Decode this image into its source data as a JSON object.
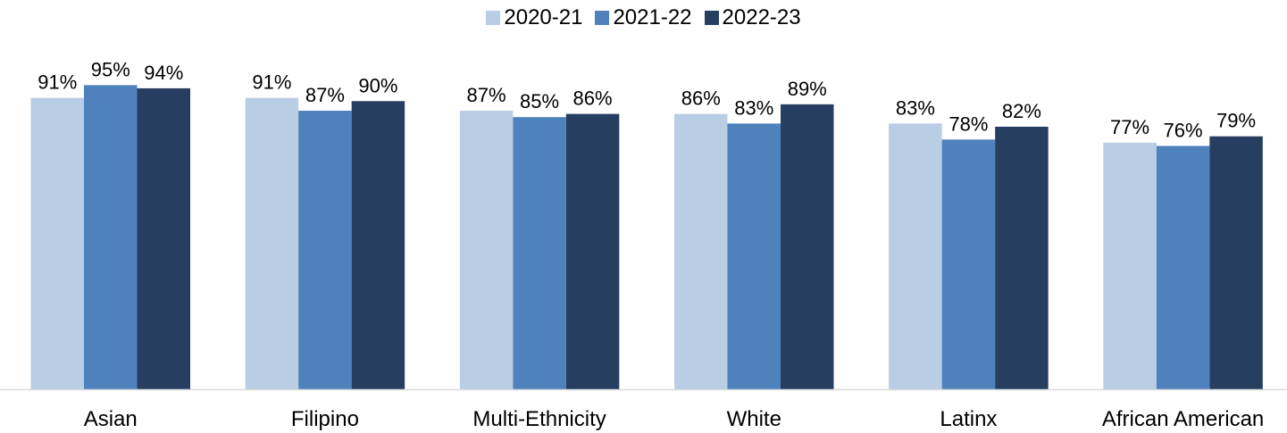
{
  "chart_data": {
    "type": "bar",
    "categories": [
      "Asian",
      "Filipino",
      "Multi-Ethnicity",
      "White",
      "Latinx",
      "African American"
    ],
    "series": [
      {
        "name": "2020-21",
        "color": "#B9CDE5",
        "values": [
          91,
          91,
          87,
          86,
          83,
          77
        ],
        "labels": [
          "91%",
          "91%",
          "87%",
          "86%",
          "83%",
          "77%"
        ]
      },
      {
        "name": "2021-22",
        "color": "#4F81BD",
        "values": [
          95,
          87,
          85,
          83,
          78,
          76
        ],
        "labels": [
          "95%",
          "87%",
          "85%",
          "83%",
          "78%",
          "76%"
        ]
      },
      {
        "name": "2022-23",
        "color": "#263F61",
        "values": [
          94,
          90,
          86,
          89,
          82,
          79
        ],
        "labels": [
          "94%",
          "90%",
          "86%",
          "89%",
          "82%",
          "79%"
        ]
      }
    ],
    "ylim": [
      0,
      100
    ],
    "grid": false,
    "legend": "top-center",
    "data_labels": true
  }
}
